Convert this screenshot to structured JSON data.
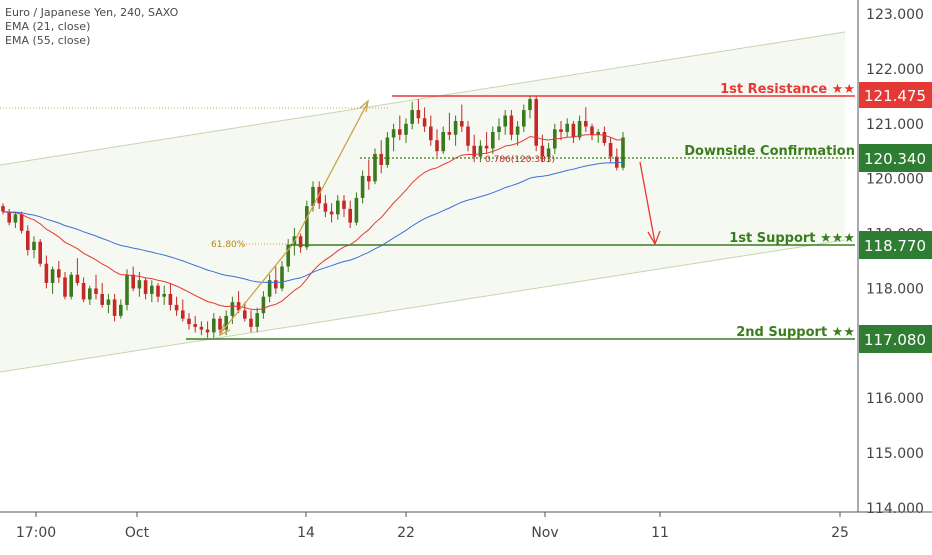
{
  "legend": {
    "symbol": "Euro / Japanese Yen, 240, SAXO",
    "ema21": "EMA (21, close)",
    "ema55": "EMA (55, close)"
  },
  "colors": {
    "up": "#3a7a1e",
    "down": "#c62828",
    "ema21": "#e53935",
    "ema55": "#3f6fd6",
    "resistance": "#e53935",
    "support": "#3a7d1e",
    "fib": "#c9a34a",
    "channel": "#c8d5b0",
    "grid": "#d8d8d8",
    "axis_text": "#444444"
  },
  "levels": {
    "resistance1": {
      "label": "1st Resistance ★★",
      "price": "121.475",
      "value": 121.475
    },
    "confirmation": {
      "label": "Downside Confirmation",
      "price": "120.340",
      "value": 120.34
    },
    "support1": {
      "label": "1st Support ★★★",
      "price": "118.770",
      "value": 118.77
    },
    "support2": {
      "label": "2nd Support ★★",
      "price": "117.080",
      "value": 117.08
    }
  },
  "annotations": {
    "fib_618": "61.80%",
    "fib_786": "0.786(120.383)"
  },
  "chart_data": {
    "type": "candlestick",
    "title": "Euro / Japanese Yen, 240, SAXO",
    "ylim": [
      113.9,
      123.3
    ],
    "y_ticks": [
      "123.000",
      "122.000",
      "121.000",
      "120.000",
      "119.000",
      "118.000",
      "117.000",
      "116.000",
      "115.000",
      "114.000"
    ],
    "x_ticks": [
      "17:00",
      "Oct",
      "14",
      "22",
      "Nov",
      "11",
      "25"
    ],
    "price_axis_side": "right",
    "grid": false,
    "candles": [
      [
        119.5,
        119.55,
        119.35,
        119.4
      ],
      [
        119.4,
        119.45,
        119.15,
        119.2
      ],
      [
        119.2,
        119.4,
        119.1,
        119.35
      ],
      [
        119.35,
        119.4,
        119.0,
        119.05
      ],
      [
        119.05,
        119.15,
        118.6,
        118.7
      ],
      [
        118.7,
        118.95,
        118.55,
        118.85
      ],
      [
        118.85,
        118.9,
        118.4,
        118.45
      ],
      [
        118.45,
        118.6,
        118.0,
        118.1
      ],
      [
        118.1,
        118.4,
        117.9,
        118.35
      ],
      [
        118.35,
        118.5,
        118.1,
        118.2
      ],
      [
        118.2,
        118.3,
        117.8,
        117.85
      ],
      [
        117.85,
        118.3,
        117.8,
        118.25
      ],
      [
        118.25,
        118.55,
        118.05,
        118.1
      ],
      [
        118.1,
        118.2,
        117.75,
        117.8
      ],
      [
        117.8,
        118.05,
        117.7,
        118.0
      ],
      [
        118.0,
        118.25,
        117.8,
        117.9
      ],
      [
        117.9,
        118.1,
        117.65,
        117.7
      ],
      [
        117.7,
        117.9,
        117.55,
        117.8
      ],
      [
        117.8,
        117.9,
        117.4,
        117.5
      ],
      [
        117.5,
        117.8,
        117.45,
        117.7
      ],
      [
        117.7,
        118.35,
        117.6,
        118.25
      ],
      [
        118.25,
        118.4,
        117.95,
        118.0
      ],
      [
        118.0,
        118.3,
        117.85,
        118.15
      ],
      [
        118.15,
        118.2,
        117.8,
        117.9
      ],
      [
        117.9,
        118.15,
        117.75,
        118.05
      ],
      [
        118.05,
        118.1,
        117.75,
        117.85
      ],
      [
        117.85,
        118.05,
        117.7,
        117.9
      ],
      [
        117.9,
        118.1,
        117.6,
        117.7
      ],
      [
        117.7,
        117.85,
        117.5,
        117.6
      ],
      [
        117.6,
        117.8,
        117.4,
        117.45
      ],
      [
        117.45,
        117.55,
        117.25,
        117.35
      ],
      [
        117.35,
        117.5,
        117.2,
        117.3
      ],
      [
        117.3,
        117.4,
        117.15,
        117.25
      ],
      [
        117.25,
        117.4,
        117.1,
        117.2
      ],
      [
        117.2,
        117.55,
        117.1,
        117.45
      ],
      [
        117.45,
        117.5,
        117.15,
        117.25
      ],
      [
        117.25,
        117.6,
        117.15,
        117.5
      ],
      [
        117.5,
        117.85,
        117.35,
        117.75
      ],
      [
        117.75,
        117.95,
        117.55,
        117.6
      ],
      [
        117.6,
        117.75,
        117.4,
        117.45
      ],
      [
        117.45,
        117.6,
        117.2,
        117.3
      ],
      [
        117.3,
        117.65,
        117.2,
        117.55
      ],
      [
        117.55,
        117.95,
        117.45,
        117.85
      ],
      [
        117.85,
        118.25,
        117.75,
        118.15
      ],
      [
        118.15,
        118.4,
        117.9,
        118.0
      ],
      [
        118.0,
        118.5,
        117.95,
        118.4
      ],
      [
        118.4,
        118.9,
        118.3,
        118.8
      ],
      [
        118.8,
        119.1,
        118.6,
        118.95
      ],
      [
        118.95,
        119.0,
        118.65,
        118.75
      ],
      [
        118.75,
        119.6,
        118.7,
        119.5
      ],
      [
        119.5,
        119.95,
        119.4,
        119.85
      ],
      [
        119.85,
        119.95,
        119.45,
        119.55
      ],
      [
        119.55,
        119.7,
        119.3,
        119.4
      ],
      [
        119.4,
        119.55,
        119.2,
        119.35
      ],
      [
        119.35,
        119.7,
        119.25,
        119.6
      ],
      [
        119.6,
        119.7,
        119.3,
        119.45
      ],
      [
        119.45,
        119.6,
        119.1,
        119.2
      ],
      [
        119.2,
        119.75,
        119.15,
        119.65
      ],
      [
        119.65,
        120.15,
        119.55,
        120.05
      ],
      [
        120.05,
        120.35,
        119.8,
        119.95
      ],
      [
        119.95,
        120.55,
        119.9,
        120.45
      ],
      [
        120.45,
        120.7,
        120.1,
        120.25
      ],
      [
        120.25,
        120.85,
        120.2,
        120.75
      ],
      [
        120.75,
        121.0,
        120.5,
        120.9
      ],
      [
        120.9,
        121.15,
        120.7,
        120.8
      ],
      [
        120.8,
        121.1,
        120.65,
        121.0
      ],
      [
        121.0,
        121.4,
        120.9,
        121.25
      ],
      [
        121.25,
        121.45,
        121.0,
        121.1
      ],
      [
        121.1,
        121.3,
        120.85,
        120.95
      ],
      [
        120.95,
        121.15,
        120.6,
        120.7
      ],
      [
        120.7,
        120.9,
        120.4,
        120.5
      ],
      [
        120.5,
        120.95,
        120.45,
        120.85
      ],
      [
        120.85,
        121.2,
        120.7,
        120.8
      ],
      [
        120.8,
        121.15,
        120.6,
        121.05
      ],
      [
        121.05,
        121.35,
        120.85,
        120.95
      ],
      [
        120.95,
        121.05,
        120.5,
        120.6
      ],
      [
        120.6,
        120.8,
        120.3,
        120.4
      ],
      [
        120.4,
        120.7,
        120.3,
        120.6
      ],
      [
        120.6,
        120.85,
        120.45,
        120.55
      ],
      [
        120.55,
        120.95,
        120.45,
        120.85
      ],
      [
        120.85,
        121.1,
        120.7,
        120.95
      ],
      [
        120.95,
        121.25,
        120.8,
        121.15
      ],
      [
        121.15,
        121.25,
        120.7,
        120.8
      ],
      [
        120.8,
        121.05,
        120.6,
        120.95
      ],
      [
        120.95,
        121.35,
        120.85,
        121.25
      ],
      [
        121.25,
        121.5,
        121.1,
        121.45
      ],
      [
        121.45,
        121.5,
        120.5,
        120.6
      ],
      [
        120.6,
        120.8,
        120.3,
        120.4
      ],
      [
        120.4,
        120.65,
        120.3,
        120.55
      ],
      [
        120.55,
        121.0,
        120.45,
        120.9
      ],
      [
        120.9,
        121.05,
        120.7,
        120.85
      ],
      [
        120.85,
        121.1,
        120.75,
        121.0
      ],
      [
        121.0,
        121.05,
        120.65,
        120.75
      ],
      [
        120.75,
        121.15,
        120.7,
        121.05
      ],
      [
        121.05,
        121.3,
        120.85,
        120.95
      ],
      [
        120.95,
        121.0,
        120.7,
        120.8
      ],
      [
        120.8,
        120.9,
        120.65,
        120.85
      ],
      [
        120.85,
        120.95,
        120.6,
        120.65
      ],
      [
        120.65,
        120.75,
        120.3,
        120.4
      ],
      [
        120.4,
        120.55,
        120.15,
        120.2
      ],
      [
        120.2,
        120.85,
        120.15,
        120.75
      ]
    ]
  }
}
